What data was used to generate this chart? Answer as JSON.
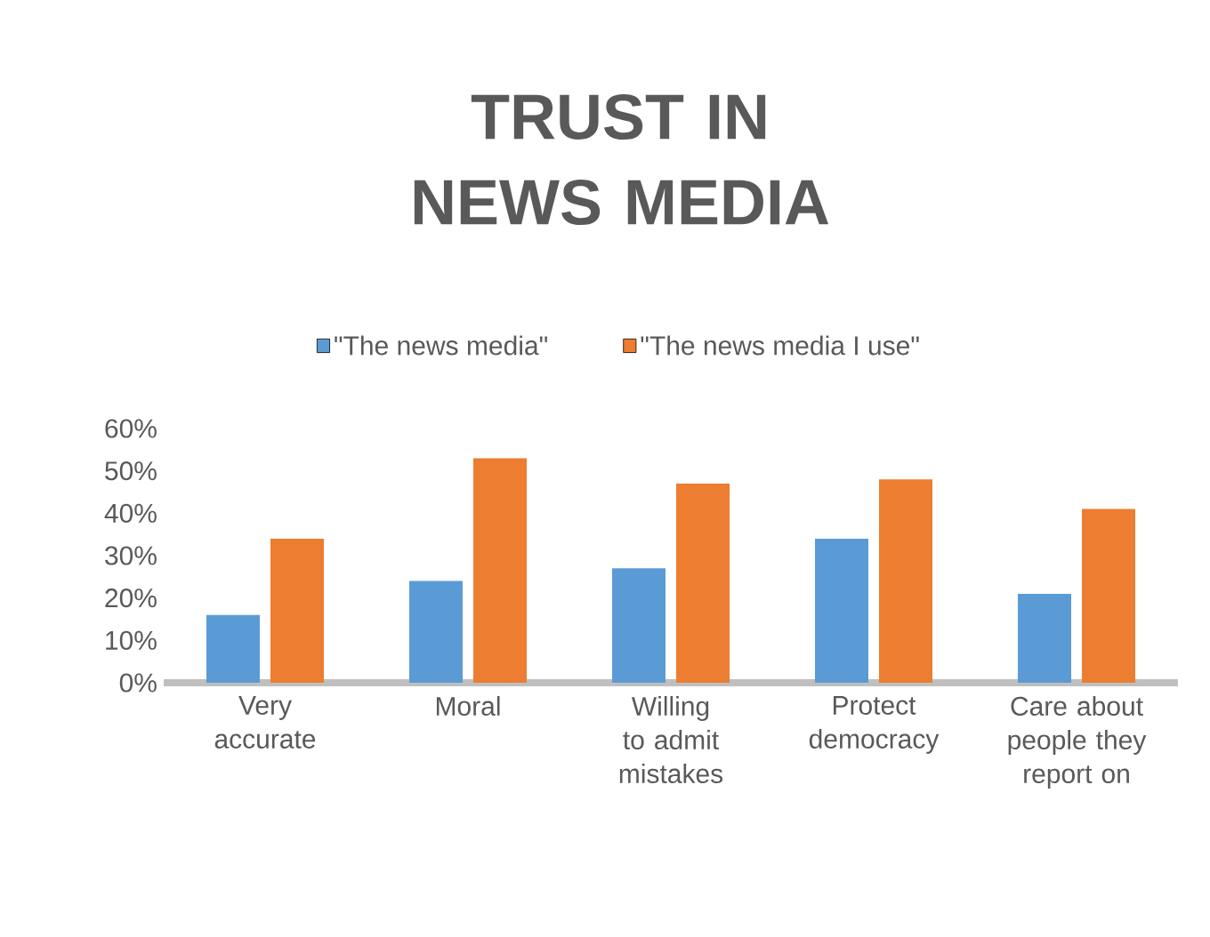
{
  "chart_data": {
    "type": "bar",
    "title": "TRUST IN NEWS MEDIA",
    "categories": [
      "Very accurate",
      "Moral",
      "Willing to admit mistakes",
      "Protect democracy",
      "Care about people they report on"
    ],
    "series": [
      {
        "name": "\"The news media\"",
        "color": "#5b9bd5",
        "values": [
          16,
          24,
          27,
          34,
          21
        ]
      },
      {
        "name": "\"The news media I use\"",
        "color": "#ed7d31",
        "values": [
          34,
          53,
          47,
          48,
          41
        ]
      }
    ],
    "ylim": [
      0,
      60
    ],
    "yticks": [
      {
        "value": 0,
        "label": "0%"
      },
      {
        "value": 10,
        "label": "10%"
      },
      {
        "value": 20,
        "label": "20%"
      },
      {
        "value": 30,
        "label": "30%"
      },
      {
        "value": 40,
        "label": "40%"
      },
      {
        "value": 50,
        "label": "50%"
      },
      {
        "value": 60,
        "label": "60%"
      }
    ],
    "legend": "top"
  }
}
